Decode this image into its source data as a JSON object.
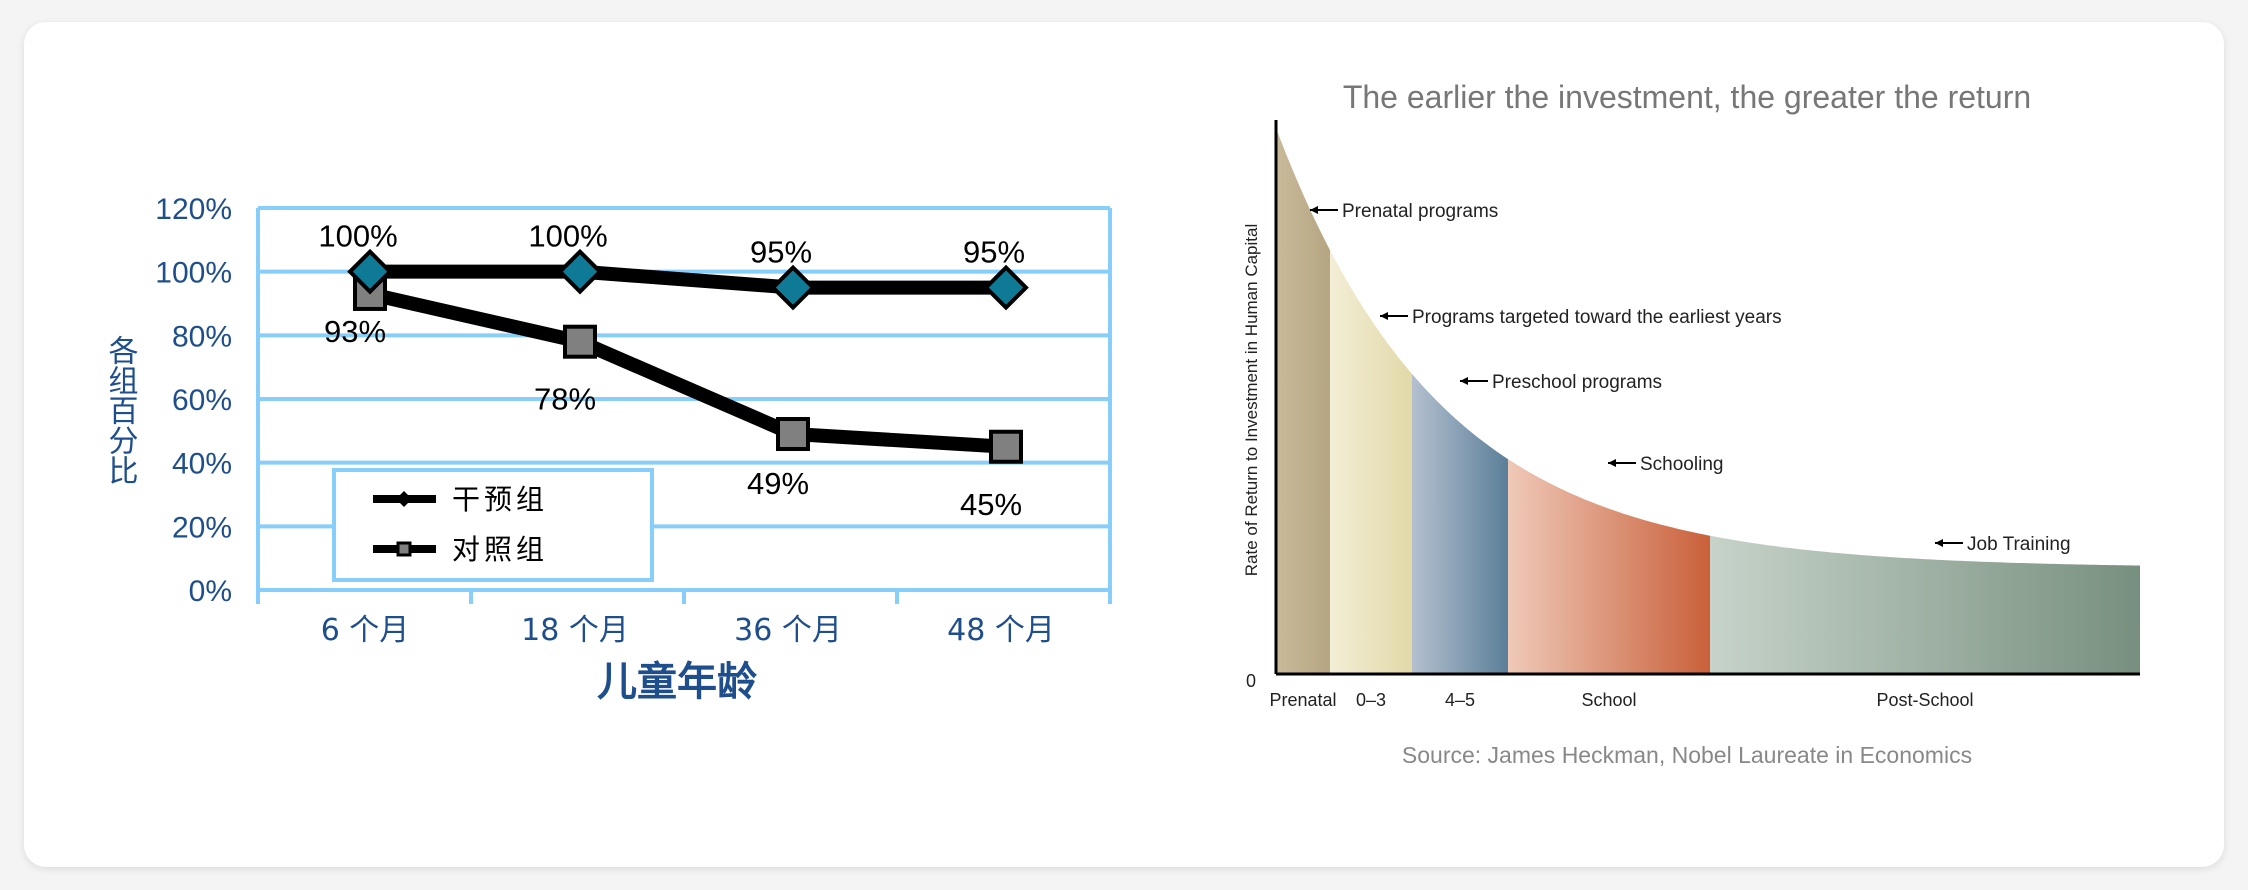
{
  "chart_data": [
    {
      "type": "line",
      "categories": [
        "6 个月",
        "18 个月",
        "36 个月",
        "48 个月"
      ],
      "series": [
        {
          "name": "干预组",
          "values": [
            100,
            100,
            95,
            95
          ],
          "labels": [
            "100%",
            "100%",
            "95%",
            "95%"
          ],
          "color": "#0e7a96",
          "marker": "diamond"
        },
        {
          "name": "对照组",
          "values": [
            93,
            78,
            49,
            45
          ],
          "labels": [
            "93%",
            "78%",
            "49%",
            "45%"
          ],
          "color": "#808080",
          "marker": "square"
        }
      ],
      "ylim": [
        0,
        120
      ],
      "yticks": [
        "0%",
        "20%",
        "40%",
        "60%",
        "80%",
        "100%",
        "120%"
      ],
      "xlabel": "儿童年龄",
      "ylabel": "各组百分比",
      "grid": true,
      "gridColor": "#87cefa",
      "axisTextColor": "#1f4e8c",
      "legend": "inside-lower-left"
    },
    {
      "type": "area",
      "title": "The earlier the investment, the greater the return",
      "ylabel": "Rate of Return to Investment in Human Capital",
      "yorigin": "0",
      "stages": [
        {
          "label": "Prenatal",
          "colors": [
            "#c9bb9a",
            "#b5a582"
          ]
        },
        {
          "label": "0–3",
          "colors": [
            "#f3eed6",
            "#e2d9a8"
          ]
        },
        {
          "label": "4–5",
          "colors": [
            "#b4c0cf",
            "#5b7f99"
          ]
        },
        {
          "label": "School",
          "colors": [
            "#efc9b8",
            "#c9603a"
          ]
        },
        {
          "label": "Post-School",
          "colors": [
            "#c7d3ca",
            "#778f7e"
          ]
        }
      ],
      "annotations": [
        "Prenatal programs",
        "Programs targeted toward the earliest years",
        "Preschool programs",
        "Schooling",
        "Job Training"
      ],
      "source": "Source: James Heckman, Nobel Laureate in Economics"
    }
  ]
}
